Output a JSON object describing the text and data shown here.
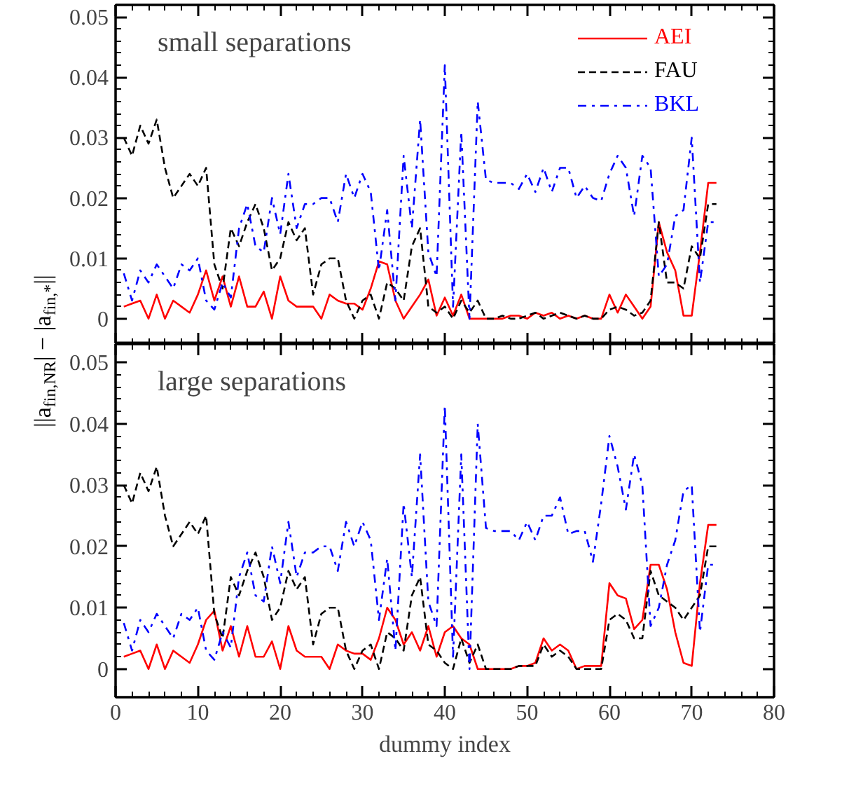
{
  "chart_data": [
    {
      "type": "line",
      "title": "small separations",
      "tick_labels": "y",
      "legend": "top right",
      "grid": false,
      "xlim": [
        0,
        80
      ],
      "ylim": [
        -0.0042,
        0.052
      ],
      "xticks": [
        0,
        10,
        20,
        30,
        40,
        50,
        60,
        70,
        80
      ],
      "yticks": [
        0,
        0.01,
        0.02,
        0.03,
        0.04,
        0.05
      ],
      "x": [
        1,
        2,
        3,
        4,
        5,
        6,
        7,
        8,
        9,
        10,
        11,
        12,
        13,
        14,
        15,
        16,
        17,
        18,
        19,
        20,
        21,
        22,
        23,
        24,
        25,
        26,
        27,
        28,
        29,
        30,
        31,
        32,
        33,
        34,
        35,
        36,
        37,
        38,
        39,
        40,
        41,
        42,
        43,
        44,
        45,
        46,
        47,
        48,
        49,
        50,
        51,
        52,
        53,
        54,
        55,
        56,
        57,
        58,
        59,
        60,
        61,
        62,
        63,
        64,
        65,
        66,
        67,
        68,
        69,
        70,
        71,
        72,
        73
      ],
      "series": [
        {
          "name": "AEI",
          "color": "#ff0000",
          "line_style": "solid",
          "values": [
            0.002,
            0.0025,
            0.003,
            0.0,
            0.004,
            0.0,
            0.003,
            0.002,
            0.001,
            0.004,
            0.008,
            0.003,
            0.007,
            0.002,
            0.007,
            0.002,
            0.002,
            0.0045,
            0.0,
            0.007,
            0.003,
            0.002,
            0.002,
            0.002,
            0.0,
            0.004,
            0.003,
            0.0025,
            0.0025,
            0.0015,
            0.005,
            0.0095,
            0.009,
            0.003,
            0.0,
            0.002,
            0.004,
            0.0065,
            0.0005,
            0.0035,
            0.0005,
            0.004,
            0.0,
            0.0,
            0.0,
            0.0,
            0.0,
            0.0005,
            0.0005,
            0.0,
            0.001,
            0.0005,
            0.001,
            0.0,
            0.0005,
            0.0,
            0.0005,
            0.0,
            0.0,
            0.004,
            0.001,
            0.004,
            0.002,
            0.0,
            0.002,
            0.016,
            0.011,
            0.008,
            0.0005,
            0.0005,
            0.011,
            0.0225,
            0.0225
          ]
        },
        {
          "name": "FAU",
          "color": "#000000",
          "line_style": "dashed",
          "values": [
            0.03,
            0.027,
            0.032,
            0.029,
            0.033,
            0.025,
            0.02,
            0.022,
            0.024,
            0.022,
            0.025,
            0.009,
            0.005,
            0.015,
            0.012,
            0.016,
            0.019,
            0.015,
            0.008,
            0.01,
            0.016,
            0.013,
            0.015,
            0.004,
            0.009,
            0.01,
            0.01,
            0.003,
            0.0,
            0.003,
            0.004,
            0.0,
            0.006,
            0.005,
            0.003,
            0.012,
            0.015,
            0.002,
            0.001,
            0.002,
            0.0,
            0.003,
            0.001,
            0.003,
            0.0,
            0.0,
            0.0005,
            0.0,
            0.0,
            0.0005,
            0.001,
            0.0,
            0.0005,
            0.001,
            0.0005,
            0.0,
            0.0005,
            0.0,
            0.0,
            0.0015,
            0.002,
            0.0015,
            0.0005,
            0.001,
            0.003,
            0.016,
            0.006,
            0.006,
            0.005,
            0.012,
            0.01,
            0.019,
            0.019
          ]
        },
        {
          "name": "BKL",
          "color": "#0000ff",
          "line_style": "dashdot",
          "values": [
            0.0075,
            0.003,
            0.008,
            0.006,
            0.009,
            0.007,
            0.005,
            0.009,
            0.008,
            0.01,
            0.003,
            0.0015,
            0.006,
            0.0035,
            0.015,
            0.019,
            0.012,
            0.011,
            0.02,
            0.014,
            0.024,
            0.015,
            0.019,
            0.019,
            0.02,
            0.02,
            0.016,
            0.024,
            0.02,
            0.024,
            0.021,
            0.008,
            0.018,
            0.003,
            0.027,
            0.015,
            0.033,
            0.011,
            0.007,
            0.042,
            0.002,
            0.031,
            0.0,
            0.036,
            0.023,
            0.0225,
            0.0225,
            0.0225,
            0.0215,
            0.024,
            0.021,
            0.025,
            0.021,
            0.025,
            0.025,
            0.02,
            0.022,
            0.02,
            0.0195,
            0.024,
            0.027,
            0.025,
            0.017,
            0.027,
            0.025,
            0.007,
            0.009,
            0.017,
            0.018,
            0.03,
            0.006,
            0.016,
            0.016
          ]
        }
      ]
    },
    {
      "type": "line",
      "title": "large separations",
      "xlabel": "dummy index",
      "ylabel": "||a$_{fin,NR}$| − |a$_{fin,*}$||",
      "grid": false,
      "xlim": [
        0,
        80
      ],
      "ylim": [
        -0.0046,
        0.053
      ],
      "xticks": [
        0,
        10,
        20,
        30,
        40,
        50,
        60,
        70,
        80
      ],
      "yticks": [
        0,
        0.01,
        0.02,
        0.03,
        0.04,
        0.05
      ],
      "x": [
        1,
        2,
        3,
        4,
        5,
        6,
        7,
        8,
        9,
        10,
        11,
        12,
        13,
        14,
        15,
        16,
        17,
        18,
        19,
        20,
        21,
        22,
        23,
        24,
        25,
        26,
        27,
        28,
        29,
        30,
        31,
        32,
        33,
        34,
        35,
        36,
        37,
        38,
        39,
        40,
        41,
        42,
        43,
        44,
        45,
        46,
        47,
        48,
        49,
        50,
        51,
        52,
        53,
        54,
        55,
        56,
        57,
        58,
        59,
        60,
        61,
        62,
        63,
        64,
        65,
        66,
        67,
        68,
        69,
        70,
        71,
        72,
        73
      ],
      "series": [
        {
          "color": "#ff0000",
          "line_style": "solid",
          "values": [
            0.002,
            0.0025,
            0.003,
            0.0,
            0.004,
            0.0,
            0.003,
            0.002,
            0.001,
            0.004,
            0.008,
            0.0095,
            0.003,
            0.007,
            0.002,
            0.007,
            0.002,
            0.002,
            0.0045,
            0.0,
            0.007,
            0.003,
            0.002,
            0.002,
            0.002,
            0.0,
            0.004,
            0.003,
            0.0025,
            0.0025,
            0.0015,
            0.005,
            0.01,
            0.008,
            0.004,
            0.006,
            0.003,
            0.007,
            0.002,
            0.006,
            0.007,
            0.005,
            0.004,
            0.0,
            0.0,
            0.0,
            0.0,
            0.0,
            0.0005,
            0.0005,
            0.001,
            0.005,
            0.003,
            0.004,
            0.003,
            0.0,
            0.0005,
            0.0005,
            0.0005,
            0.014,
            0.012,
            0.0115,
            0.0065,
            0.008,
            0.017,
            0.017,
            0.013,
            0.006,
            0.001,
            0.0005,
            0.014,
            0.0235,
            0.0235
          ]
        },
        {
          "color": "#000000",
          "line_style": "dashed",
          "values": [
            0.03,
            0.027,
            0.032,
            0.029,
            0.033,
            0.025,
            0.02,
            0.022,
            0.024,
            0.022,
            0.025,
            0.009,
            0.005,
            0.015,
            0.012,
            0.016,
            0.019,
            0.015,
            0.008,
            0.01,
            0.016,
            0.013,
            0.015,
            0.004,
            0.009,
            0.01,
            0.01,
            0.003,
            0.0,
            0.003,
            0.004,
            0.0,
            0.006,
            0.005,
            0.003,
            0.012,
            0.015,
            0.004,
            0.003,
            0.001,
            0.0,
            0.005,
            0.001,
            0.004,
            0.0,
            0.0,
            0.0,
            0.0,
            0.0005,
            0.0005,
            0.0005,
            0.004,
            0.002,
            0.003,
            0.002,
            0.0,
            0.0,
            0.0,
            0.0,
            0.008,
            0.009,
            0.008,
            0.005,
            0.005,
            0.016,
            0.012,
            0.011,
            0.01,
            0.008,
            0.01,
            0.012,
            0.02,
            0.02
          ]
        },
        {
          "color": "#0000ff",
          "line_style": "dashdot",
          "values": [
            0.0075,
            0.003,
            0.008,
            0.006,
            0.009,
            0.007,
            0.005,
            0.009,
            0.008,
            0.01,
            0.003,
            0.0015,
            0.006,
            0.0035,
            0.015,
            0.019,
            0.012,
            0.011,
            0.02,
            0.014,
            0.024,
            0.015,
            0.019,
            0.019,
            0.02,
            0.02,
            0.016,
            0.024,
            0.02,
            0.024,
            0.021,
            0.008,
            0.018,
            0.003,
            0.027,
            0.015,
            0.035,
            0.011,
            0.007,
            0.043,
            0.002,
            0.035,
            0.0,
            0.04,
            0.023,
            0.0225,
            0.0225,
            0.0225,
            0.021,
            0.024,
            0.021,
            0.025,
            0.025,
            0.028,
            0.022,
            0.0225,
            0.0225,
            0.0175,
            0.027,
            0.038,
            0.033,
            0.026,
            0.035,
            0.03,
            0.007,
            0.01,
            0.017,
            0.021,
            0.029,
            0.03,
            0.006,
            0.017,
            0.017
          ]
        }
      ]
    }
  ]
}
